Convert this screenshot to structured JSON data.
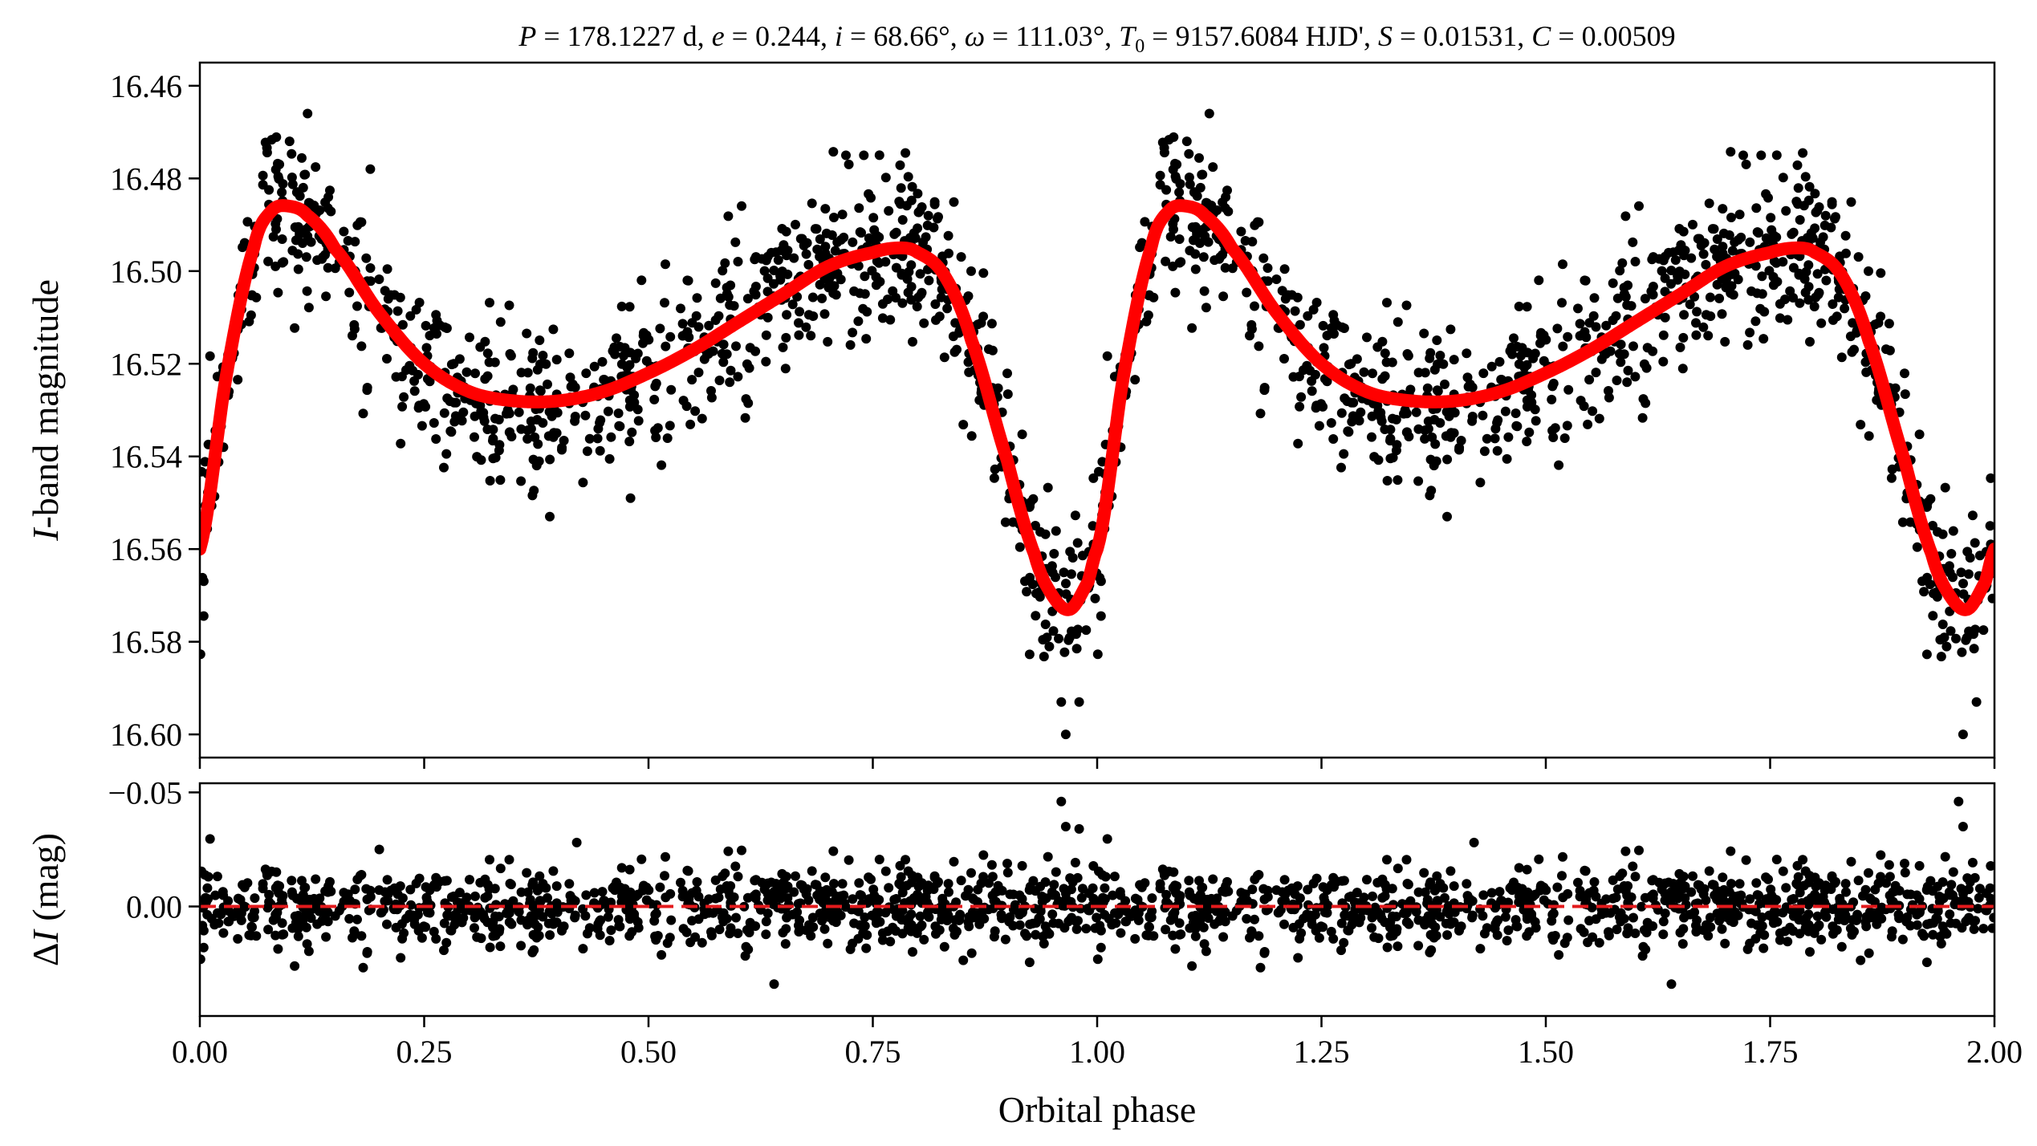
{
  "colors": {
    "points": "#000000",
    "model": "#ff0000",
    "zero_line": "#e31a1c",
    "axes": "#000000"
  },
  "chart_data": [
    {
      "type": "scatter",
      "panel": "light-curve",
      "title": "P = 178.1227 d, e = 0.244, i = 68.66°, ω = 111.03°, T0 = 9157.6084 HJD', S = 0.01531, C = 0.00509",
      "title_parts": {
        "p_label": "P",
        "p_value": " = 178.1227 d, ",
        "e_label": "e",
        "e_value": " = 0.244, ",
        "i_label": "i",
        "i_value": " = 68.66°, ",
        "w_label": "ω",
        "w_value": " = 111.03°, ",
        "t0_label": "T",
        "t0_sub": "0",
        "t0_value": " = 9157.6084 HJD', ",
        "s_label": "S",
        "s_value": " = 0.01531, ",
        "c_label": "C",
        "c_value": " = 0.00509"
      },
      "xlabel": "",
      "ylabel": "I-band magnitude",
      "ylabel_parts": {
        "italic": "I",
        "rest": "-band magnitude"
      },
      "xlim": [
        0.0,
        2.0
      ],
      "ylim": [
        16.605,
        16.455
      ],
      "y_inverted": true,
      "xticks": [
        0.0,
        0.25,
        0.5,
        0.75,
        1.0,
        1.25,
        1.5,
        1.75,
        2.0
      ],
      "yticks": [
        16.46,
        16.48,
        16.5,
        16.52,
        16.54,
        16.56,
        16.58,
        16.6
      ],
      "ytick_labels": [
        "16.46",
        "16.48",
        "16.50",
        "16.52",
        "16.54",
        "16.56",
        "16.58",
        "16.60"
      ],
      "series": [
        {
          "kind": "observations",
          "marker": "filled-circle",
          "model_anchor_phase": [
            0.0,
            0.03,
            0.06,
            0.08,
            0.1,
            0.12,
            0.15,
            0.2,
            0.25,
            0.3,
            0.35,
            0.4,
            0.45,
            0.5,
            0.55,
            0.6,
            0.65,
            0.7,
            0.75,
            0.78,
            0.8,
            0.83,
            0.86,
            0.9,
            0.93,
            0.95,
            0.97,
            0.99,
            1.0
          ],
          "model_anchor_mag": [
            16.56,
            16.522,
            16.495,
            16.487,
            16.486,
            16.488,
            16.495,
            16.509,
            16.52,
            16.526,
            16.528,
            16.528,
            16.526,
            16.522,
            16.517,
            16.511,
            16.505,
            16.499,
            16.496,
            16.495,
            16.496,
            16.501,
            16.515,
            16.541,
            16.561,
            16.57,
            16.573,
            16.567,
            16.56
          ],
          "scatter_sigma": 0.0085,
          "outliers": [
            {
              "phase": 0.1,
              "mag": 16.472
            },
            {
              "phase": 0.12,
              "mag": 16.466
            },
            {
              "phase": 0.19,
              "mag": 16.478
            },
            {
              "phase": 0.39,
              "mag": 16.553
            },
            {
              "phase": 0.48,
              "mag": 16.549
            },
            {
              "phase": 0.72,
              "mag": 16.475
            },
            {
              "phase": 0.74,
              "mag": 16.475
            },
            {
              "phase": 0.965,
              "mag": 16.6
            },
            {
              "phase": 0.96,
              "mag": 16.593
            },
            {
              "phase": 0.98,
              "mag": 16.593
            },
            {
              "phase": 1.1,
              "mag": 16.472
            },
            {
              "phase": 1.125,
              "mag": 16.466
            },
            {
              "phase": 1.39,
              "mag": 16.553
            },
            {
              "phase": 1.72,
              "mag": 16.475
            },
            {
              "phase": 1.74,
              "mag": 16.475
            },
            {
              "phase": 1.965,
              "mag": 16.6
            },
            {
              "phase": 1.98,
              "mag": 16.593
            }
          ]
        },
        {
          "kind": "model",
          "phase_repeat": true,
          "x": [
            0.0,
            0.03,
            0.06,
            0.08,
            0.1,
            0.12,
            0.15,
            0.2,
            0.25,
            0.3,
            0.35,
            0.4,
            0.45,
            0.5,
            0.55,
            0.6,
            0.65,
            0.7,
            0.75,
            0.78,
            0.8,
            0.83,
            0.86,
            0.9,
            0.93,
            0.95,
            0.97,
            0.99,
            1.0
          ],
          "y": [
            16.56,
            16.522,
            16.495,
            16.487,
            16.486,
            16.488,
            16.495,
            16.509,
            16.52,
            16.526,
            16.528,
            16.528,
            16.526,
            16.522,
            16.517,
            16.511,
            16.505,
            16.499,
            16.496,
            16.495,
            16.496,
            16.501,
            16.515,
            16.541,
            16.561,
            16.57,
            16.573,
            16.567,
            16.56
          ]
        }
      ]
    },
    {
      "type": "scatter",
      "panel": "residuals",
      "xlabel": "Orbital phase",
      "ylabel": "ΔI (mag)",
      "ylabel_parts": {
        "delta": "Δ",
        "italic": "I",
        "rest": " (mag)"
      },
      "xlim": [
        0.0,
        2.0
      ],
      "ylim": [
        0.048,
        -0.054
      ],
      "y_inverted": true,
      "xticks": [
        0.0,
        0.25,
        0.5,
        0.75,
        1.0,
        1.25,
        1.5,
        1.75,
        2.0
      ],
      "xtick_labels": [
        "0.00",
        "0.25",
        "0.50",
        "0.75",
        "1.00",
        "1.25",
        "1.50",
        "1.75",
        "2.00"
      ],
      "yticks": [
        -0.05,
        0.0
      ],
      "ytick_labels": [
        "−0.05",
        "0.00"
      ],
      "zero_line": 0.0,
      "series": [
        {
          "kind": "residuals",
          "marker": "filled-circle",
          "scatter_sigma": 0.0085,
          "outliers": [
            {
              "phase": 0.96,
              "mag": -0.046
            },
            {
              "phase": 0.965,
              "mag": -0.035
            },
            {
              "phase": 0.98,
              "mag": -0.034
            },
            {
              "phase": 0.2,
              "mag": -0.025
            },
            {
              "phase": 0.42,
              "mag": -0.028
            },
            {
              "phase": 0.64,
              "mag": 0.034
            },
            {
              "phase": 1.96,
              "mag": -0.046
            },
            {
              "phase": 1.965,
              "mag": -0.035
            },
            {
              "phase": 1.64,
              "mag": 0.034
            },
            {
              "phase": 1.42,
              "mag": -0.028
            }
          ]
        }
      ]
    }
  ]
}
